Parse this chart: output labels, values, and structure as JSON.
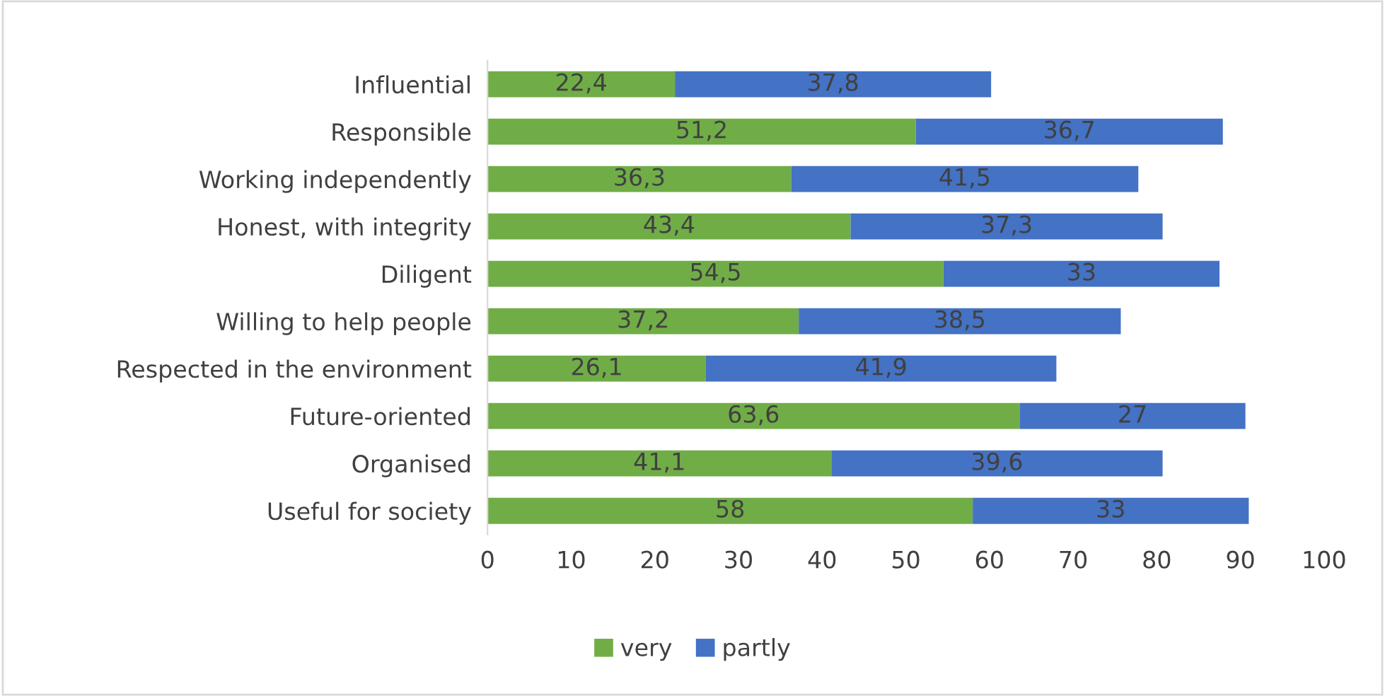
{
  "chart_data": {
    "type": "bar",
    "orientation": "horizontal",
    "stacked": true,
    "categories": [
      "Influential",
      "Responsible",
      "Working independently",
      "Honest, with integrity",
      "Diligent",
      "Willing to help people",
      "Respected in the environment",
      "Future-oriented",
      "Organised",
      "Useful for society"
    ],
    "series": [
      {
        "name": "very",
        "color": "#70ad47",
        "values": [
          22.4,
          51.2,
          36.3,
          43.4,
          54.5,
          37.2,
          26.1,
          63.6,
          41.1,
          58
        ],
        "value_labels": [
          "22,4",
          "51,2",
          "36,3",
          "43,4",
          "54,5",
          "37,2",
          "26,1",
          "63,6",
          "41,1",
          "58"
        ]
      },
      {
        "name": "partly",
        "color": "#4472c4",
        "values": [
          37.8,
          36.7,
          41.5,
          37.3,
          33,
          38.5,
          41.9,
          27,
          39.6,
          33
        ],
        "value_labels": [
          "37,8",
          "36,7",
          "41,5",
          "37,3",
          "33",
          "38,5",
          "41,9",
          "27",
          "39,6",
          "33"
        ]
      }
    ],
    "xlim": [
      0,
      100
    ],
    "xticks": [
      0,
      10,
      20,
      30,
      40,
      50,
      60,
      70,
      80,
      90,
      100
    ],
    "grid": false,
    "legend": "bottom"
  }
}
